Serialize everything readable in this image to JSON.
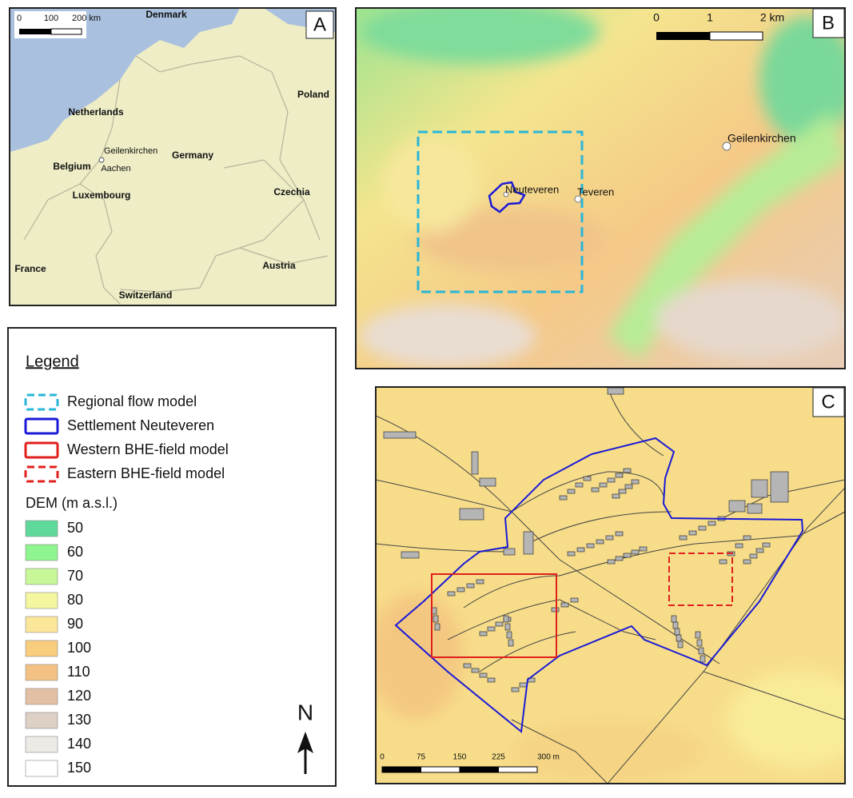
{
  "panel_a": {
    "label": "A",
    "scale": [
      "0",
      "100",
      "200 km"
    ],
    "places": [
      "Denmark",
      "Netherlands",
      "Poland",
      "Geilenkirchen",
      "Belgium",
      "Aachen",
      "Germany",
      "Luxembourg",
      "Czechia",
      "France",
      "Austria",
      "Switzerland"
    ]
  },
  "panel_b": {
    "label": "B",
    "scale": [
      "0",
      "1",
      "2 km"
    ],
    "places": [
      "Geilenkirchen",
      "Neuteveren",
      "Teveren"
    ]
  },
  "panel_c": {
    "label": "C",
    "scale": [
      "0",
      "75",
      "150",
      "225",
      "300 m"
    ]
  },
  "legend": {
    "title": "Legend",
    "items": [
      {
        "label": "Regional flow model",
        "color": "#29b6d8",
        "dashed": true
      },
      {
        "label": "Settlement Neuteveren",
        "color": "#1a1ad6",
        "dashed": false
      },
      {
        "label": "Western BHE-field model",
        "color": "#e0201c",
        "dashed": false
      },
      {
        "label": "Eastern BHE-field model",
        "color": "#e0201c",
        "dashed": true
      }
    ],
    "dem_title": "DEM (m a.s.l.)",
    "dem_classes": [
      {
        "value": 50,
        "color": "#5fd99a"
      },
      {
        "value": 60,
        "color": "#8ff58f"
      },
      {
        "value": 70,
        "color": "#c8f79a"
      },
      {
        "value": 80,
        "color": "#f4f7a0"
      },
      {
        "value": 90,
        "color": "#fbe79a"
      },
      {
        "value": 100,
        "color": "#f9cd7e"
      },
      {
        "value": 110,
        "color": "#f3c184"
      },
      {
        "value": 120,
        "color": "#e2c0a6"
      },
      {
        "value": 130,
        "color": "#ddd0c4"
      },
      {
        "value": 140,
        "color": "#eeeae6"
      },
      {
        "value": 150,
        "color": "#ffffff"
      }
    ],
    "north": "N"
  }
}
